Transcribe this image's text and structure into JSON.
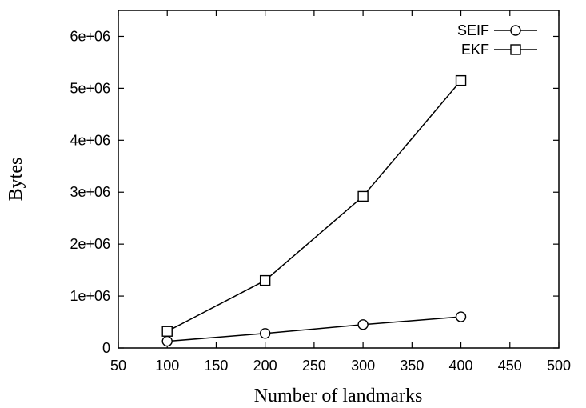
{
  "chart_data": {
    "type": "line",
    "title": "",
    "xlabel": "Number of landmarks",
    "ylabel": "Bytes",
    "xlim": [
      50,
      500
    ],
    "ylim": [
      0,
      6500000
    ],
    "xticks": [
      50,
      100,
      150,
      200,
      250,
      300,
      350,
      400,
      450,
      500
    ],
    "xtick_labels": [
      "50",
      "100",
      "150",
      "200",
      "250",
      "300",
      "350",
      "400",
      "450",
      "500"
    ],
    "yticks": [
      0,
      1000000,
      2000000,
      3000000,
      4000000,
      5000000,
      6000000
    ],
    "ytick_labels": [
      "0",
      "1e+06",
      "2e+06",
      "3e+06",
      "4e+06",
      "5e+06",
      "6e+06"
    ],
    "grid": false,
    "legend_position": "top-right",
    "x": [
      100,
      200,
      300,
      400
    ],
    "series": [
      {
        "name": "SEIF",
        "marker": "circle",
        "values": [
          130000,
          280000,
          450000,
          600000
        ]
      },
      {
        "name": "EKF",
        "marker": "square",
        "values": [
          320000,
          1300000,
          2920000,
          5150000
        ]
      }
    ]
  }
}
